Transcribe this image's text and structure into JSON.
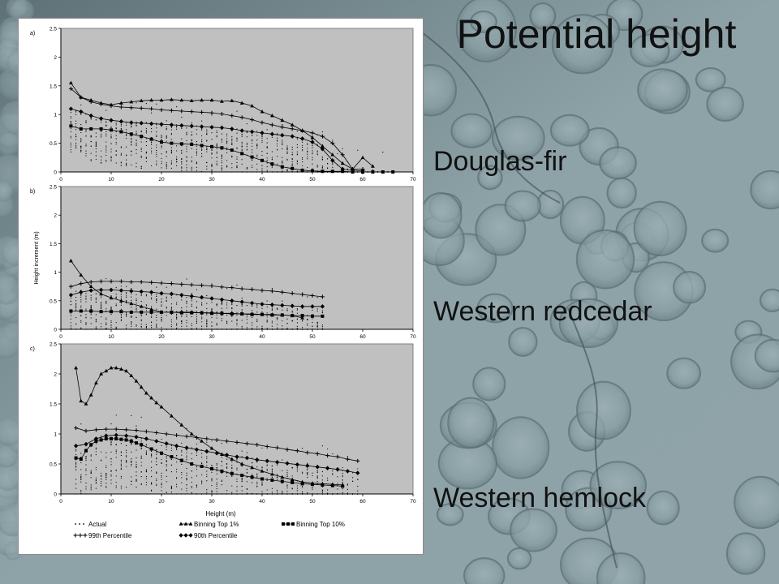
{
  "slide": {
    "title": "Potential height",
    "species": [
      "Douglas-fir",
      "Western redcedar",
      "Western hemlock"
    ]
  },
  "colors": {
    "panel_bg": "#c0c0c0",
    "marks": "#000000",
    "text": "#111111"
  },
  "chart_data": [
    {
      "type": "scatter",
      "panel_label": "a)",
      "xlim": [
        0,
        70
      ],
      "ylim": [
        0,
        2.5
      ],
      "xticks": [
        0,
        10,
        20,
        30,
        40,
        50,
        60,
        70
      ],
      "yticks": [
        0,
        0.5,
        1,
        1.5,
        2,
        2.5
      ],
      "xlabel": "",
      "ylabel": "",
      "series": [
        {
          "name": "Binning Top 1%",
          "marker": "triangle",
          "x": [
            2,
            4,
            6,
            8,
            10,
            12,
            14,
            16,
            18,
            20,
            22,
            24,
            26,
            28,
            30,
            32,
            34,
            36,
            38,
            40,
            42,
            44,
            46,
            48,
            50,
            52,
            54,
            56,
            58,
            60,
            62
          ],
          "y": [
            1.55,
            1.3,
            1.25,
            1.2,
            1.17,
            1.2,
            1.22,
            1.24,
            1.25,
            1.25,
            1.26,
            1.25,
            1.24,
            1.25,
            1.25,
            1.23,
            1.24,
            1.2,
            1.15,
            1.05,
            0.98,
            0.9,
            0.82,
            0.72,
            0.6,
            0.45,
            0.3,
            0.15,
            0.05,
            0.25,
            0.1
          ]
        },
        {
          "name": "Binning Top 10%",
          "marker": "square",
          "x": [
            2,
            4,
            6,
            8,
            10,
            12,
            14,
            16,
            18,
            20,
            22,
            24,
            26,
            28,
            30,
            32,
            34,
            36,
            38,
            40,
            42,
            44,
            46,
            48,
            50,
            52,
            54,
            56,
            58,
            60,
            62,
            64,
            66
          ],
          "y": [
            0.8,
            0.75,
            0.75,
            0.75,
            0.73,
            0.7,
            0.66,
            0.62,
            0.57,
            0.52,
            0.5,
            0.49,
            0.48,
            0.46,
            0.44,
            0.42,
            0.38,
            0.32,
            0.26,
            0.2,
            0.14,
            0.09,
            0.06,
            0.03,
            0.02,
            0.01,
            0.01,
            0.01,
            0.0,
            0.0,
            0.0,
            0.0,
            0.0
          ]
        },
        {
          "name": "99th Percentile",
          "marker": "plus",
          "x": [
            2,
            4,
            6,
            8,
            10,
            12,
            14,
            16,
            18,
            20,
            22,
            24,
            26,
            28,
            30,
            32,
            34,
            36,
            38,
            40,
            42,
            44,
            46,
            48,
            50,
            52,
            54,
            56,
            58,
            60
          ],
          "y": [
            1.45,
            1.3,
            1.22,
            1.18,
            1.15,
            1.13,
            1.12,
            1.11,
            1.1,
            1.08,
            1.07,
            1.06,
            1.05,
            1.04,
            1.03,
            1.01,
            0.98,
            0.95,
            0.91,
            0.86,
            0.82,
            0.78,
            0.75,
            0.72,
            0.68,
            0.62,
            0.5,
            0.3,
            0.05,
            0.05
          ]
        },
        {
          "name": "90th Percentile",
          "marker": "diamond",
          "x": [
            2,
            4,
            6,
            8,
            10,
            12,
            14,
            16,
            18,
            20,
            22,
            24,
            26,
            28,
            30,
            32,
            34,
            36,
            38,
            40,
            42,
            44,
            46,
            48,
            50,
            52,
            54,
            56,
            58,
            60
          ],
          "y": [
            1.1,
            1.05,
            0.98,
            0.93,
            0.9,
            0.88,
            0.86,
            0.85,
            0.84,
            0.83,
            0.82,
            0.81,
            0.8,
            0.79,
            0.78,
            0.77,
            0.75,
            0.72,
            0.7,
            0.68,
            0.66,
            0.64,
            0.62,
            0.58,
            0.52,
            0.4,
            0.2,
            0.05,
            0.03,
            0.02
          ]
        }
      ],
      "actual_scatter": {
        "xrange": [
          2,
          65
        ],
        "median_offset": -0.1,
        "spread": 0.45
      }
    },
    {
      "type": "scatter",
      "panel_label": "b)",
      "xlim": [
        0,
        70
      ],
      "ylim": [
        0,
        2.5
      ],
      "xticks": [
        0,
        10,
        20,
        30,
        40,
        50,
        60,
        70
      ],
      "yticks": [
        0,
        0.5,
        1,
        1.5,
        2,
        2.5
      ],
      "xlabel": "",
      "ylabel": "Height increment (m)",
      "series": [
        {
          "name": "Binning Top 1%",
          "marker": "triangle",
          "x": [
            2,
            4,
            6,
            8,
            10,
            12,
            14,
            16,
            18,
            20,
            22,
            24,
            26,
            28,
            30,
            32,
            34,
            36,
            38,
            40,
            42,
            44,
            46,
            48
          ],
          "y": [
            1.2,
            0.95,
            0.75,
            0.62,
            0.55,
            0.5,
            0.45,
            0.4,
            0.35,
            0.3,
            0.3,
            0.3,
            0.3,
            0.29,
            0.29,
            0.28,
            0.28,
            0.27,
            0.27,
            0.26,
            0.26,
            0.25,
            0.24,
            0.2
          ]
        },
        {
          "name": "Binning Top 10%",
          "marker": "square",
          "x": [
            2,
            4,
            6,
            8,
            10,
            12,
            14,
            16,
            18,
            20,
            22,
            24,
            26,
            28,
            30,
            32,
            34,
            36,
            38,
            40,
            42,
            44,
            46,
            48,
            50,
            52
          ],
          "y": [
            0.32,
            0.32,
            0.32,
            0.31,
            0.31,
            0.31,
            0.3,
            0.3,
            0.3,
            0.3,
            0.3,
            0.29,
            0.29,
            0.29,
            0.28,
            0.28,
            0.27,
            0.27,
            0.26,
            0.26,
            0.25,
            0.25,
            0.24,
            0.24,
            0.23,
            0.23
          ]
        },
        {
          "name": "99th Percentile",
          "marker": "plus",
          "x": [
            2,
            4,
            6,
            8,
            10,
            12,
            14,
            16,
            18,
            20,
            22,
            24,
            26,
            28,
            30,
            32,
            34,
            36,
            38,
            40,
            42,
            44,
            46,
            48,
            50,
            52
          ],
          "y": [
            0.75,
            0.8,
            0.83,
            0.84,
            0.84,
            0.84,
            0.83,
            0.83,
            0.82,
            0.81,
            0.8,
            0.79,
            0.78,
            0.77,
            0.76,
            0.74,
            0.73,
            0.71,
            0.7,
            0.68,
            0.67,
            0.65,
            0.63,
            0.61,
            0.59,
            0.57
          ]
        },
        {
          "name": "90th Percentile",
          "marker": "diamond",
          "x": [
            2,
            4,
            6,
            8,
            10,
            12,
            14,
            16,
            18,
            20,
            22,
            24,
            26,
            28,
            30,
            32,
            34,
            36,
            38,
            40,
            42,
            44,
            46,
            48,
            50,
            52
          ],
          "y": [
            0.6,
            0.65,
            0.68,
            0.69,
            0.69,
            0.68,
            0.67,
            0.66,
            0.65,
            0.63,
            0.62,
            0.6,
            0.58,
            0.56,
            0.54,
            0.52,
            0.5,
            0.48,
            0.46,
            0.44,
            0.43,
            0.42,
            0.41,
            0.4,
            0.4,
            0.4
          ]
        }
      ],
      "actual_scatter": {
        "xrange": [
          2,
          52
        ],
        "median_offset": -0.15,
        "spread": 0.4
      }
    },
    {
      "type": "scatter",
      "panel_label": "c)",
      "xlim": [
        0,
        70
      ],
      "ylim": [
        0,
        2.5
      ],
      "xticks": [
        0,
        10,
        20,
        30,
        40,
        50,
        60,
        70
      ],
      "yticks": [
        0,
        0.5,
        1,
        1.5,
        2,
        2.5
      ],
      "xlabel": "Height (m)",
      "ylabel": "",
      "series": [
        {
          "name": "Binning Top 1%",
          "marker": "triangle",
          "x": [
            3,
            4,
            5,
            6,
            7,
            8,
            9,
            10,
            11,
            12,
            13,
            14,
            15,
            16,
            17,
            18,
            19,
            20,
            22,
            24,
            26,
            28,
            30,
            32,
            34,
            36,
            38,
            40,
            42,
            44,
            46,
            48,
            50,
            52,
            54,
            56
          ],
          "y": [
            2.1,
            1.55,
            1.5,
            1.65,
            1.85,
            2.0,
            2.05,
            2.1,
            2.1,
            2.08,
            2.05,
            1.97,
            1.88,
            1.78,
            1.68,
            1.6,
            1.52,
            1.45,
            1.3,
            1.15,
            1.0,
            0.88,
            0.76,
            0.66,
            0.58,
            0.5,
            0.44,
            0.38,
            0.33,
            0.28,
            0.24,
            0.2,
            0.18,
            0.17,
            0.16,
            0.15
          ]
        },
        {
          "name": "Binning Top 10%",
          "marker": "square",
          "x": [
            3,
            4,
            5,
            6,
            7,
            8,
            9,
            10,
            11,
            12,
            13,
            14,
            15,
            16,
            18,
            20,
            22,
            24,
            26,
            28,
            30,
            32,
            34,
            36,
            38,
            40,
            42,
            44,
            46,
            48,
            50,
            52,
            54,
            56
          ],
          "y": [
            0.6,
            0.58,
            0.72,
            0.82,
            0.88,
            0.9,
            0.92,
            0.92,
            0.92,
            0.91,
            0.9,
            0.88,
            0.85,
            0.82,
            0.75,
            0.68,
            0.62,
            0.56,
            0.5,
            0.46,
            0.42,
            0.38,
            0.34,
            0.31,
            0.28,
            0.25,
            0.23,
            0.21,
            0.19,
            0.17,
            0.16,
            0.15,
            0.14,
            0.13
          ]
        },
        {
          "name": "99th Percentile",
          "marker": "plus",
          "x": [
            3,
            5,
            7,
            9,
            11,
            13,
            15,
            17,
            19,
            21,
            23,
            25,
            27,
            29,
            31,
            33,
            35,
            37,
            39,
            41,
            43,
            45,
            47,
            49,
            51,
            53,
            55,
            57,
            59
          ],
          "y": [
            1.1,
            1.05,
            1.07,
            1.08,
            1.08,
            1.07,
            1.06,
            1.04,
            1.02,
            1.0,
            0.98,
            0.96,
            0.94,
            0.92,
            0.9,
            0.88,
            0.86,
            0.84,
            0.82,
            0.79,
            0.77,
            0.74,
            0.72,
            0.69,
            0.67,
            0.64,
            0.62,
            0.58,
            0.55
          ]
        },
        {
          "name": "90th Percentile",
          "marker": "diamond",
          "x": [
            3,
            5,
            7,
            9,
            11,
            13,
            15,
            17,
            19,
            21,
            23,
            25,
            27,
            29,
            31,
            33,
            35,
            37,
            39,
            41,
            43,
            45,
            47,
            49,
            51,
            53,
            55,
            57,
            59
          ],
          "y": [
            0.8,
            0.83,
            0.92,
            0.97,
            0.98,
            0.97,
            0.95,
            0.92,
            0.88,
            0.84,
            0.8,
            0.77,
            0.74,
            0.71,
            0.68,
            0.65,
            0.62,
            0.6,
            0.57,
            0.55,
            0.53,
            0.51,
            0.49,
            0.47,
            0.45,
            0.43,
            0.41,
            0.38,
            0.35
          ]
        }
      ],
      "actual_scatter": {
        "xrange": [
          3,
          59
        ],
        "median_offset": -0.1,
        "spread": 0.5
      }
    }
  ],
  "legend": [
    {
      "marker": "dot",
      "label": "Actual"
    },
    {
      "marker": "triangle",
      "label": "Binning Top 1%"
    },
    {
      "marker": "square",
      "label": "Binning Top 10%"
    },
    {
      "marker": "plus",
      "label": "99th Percentile"
    },
    {
      "marker": "diamond",
      "label": "90th Percentile"
    }
  ]
}
